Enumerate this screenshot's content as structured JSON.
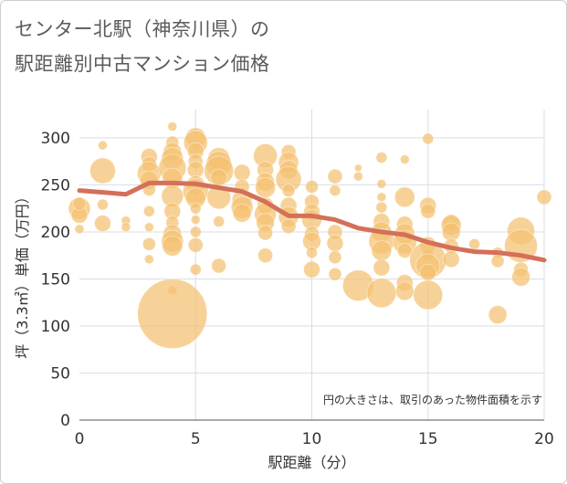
{
  "chart_data": {
    "type": "scatter",
    "title_line1": "センター北駅（神奈川県）の",
    "title_line2": "駅距離別中古マンション価格",
    "xlabel": "駅距離（分）",
    "ylabel": "坪（3.3㎡）単価（万円）",
    "annotation": "円の大きさは、取引のあった物件面積を示す",
    "xlim": [
      0,
      20
    ],
    "ylim": [
      0,
      330
    ],
    "xticks": [
      "0",
      "5",
      "10",
      "15",
      "20"
    ],
    "yticks": [
      "0",
      "50",
      "100",
      "150",
      "200",
      "250",
      "300"
    ],
    "xtick_values": [
      0,
      5,
      10,
      15,
      20
    ],
    "ytick_values": [
      0,
      50,
      100,
      150,
      200,
      250,
      300
    ],
    "colors": {
      "bubble": "#f4c170",
      "line": "#d4705a",
      "grid": "#d8dde6"
    },
    "trend_line": {
      "x": [
        0,
        1,
        2,
        3,
        4,
        5,
        6,
        7,
        8,
        9,
        10,
        11,
        12,
        13,
        14,
        15,
        16,
        17,
        18,
        19,
        20
      ],
      "y": [
        244,
        242,
        240,
        252,
        252,
        251,
        247,
        243,
        232,
        217,
        217,
        213,
        204,
        200,
        197,
        189,
        183,
        179,
        178,
        175,
        170
      ]
    },
    "bubbles": [
      {
        "x": 0,
        "y": 225,
        "s": 12
      },
      {
        "x": 0,
        "y": 218,
        "s": 9
      },
      {
        "x": 0,
        "y": 230,
        "s": 7
      },
      {
        "x": 0,
        "y": 203,
        "s": 5
      },
      {
        "x": 1,
        "y": 265,
        "s": 14
      },
      {
        "x": 1,
        "y": 292,
        "s": 5
      },
      {
        "x": 1,
        "y": 229,
        "s": 6
      },
      {
        "x": 1,
        "y": 209,
        "s": 9
      },
      {
        "x": 2,
        "y": 212,
        "s": 5
      },
      {
        "x": 2,
        "y": 205,
        "s": 5
      },
      {
        "x": 3,
        "y": 280,
        "s": 9
      },
      {
        "x": 3,
        "y": 272,
        "s": 8
      },
      {
        "x": 3,
        "y": 262,
        "s": 13
      },
      {
        "x": 3,
        "y": 255,
        "s": 10
      },
      {
        "x": 3,
        "y": 245,
        "s": 7
      },
      {
        "x": 3,
        "y": 222,
        "s": 6
      },
      {
        "x": 3,
        "y": 205,
        "s": 5
      },
      {
        "x": 3,
        "y": 187,
        "s": 7
      },
      {
        "x": 3,
        "y": 171,
        "s": 5
      },
      {
        "x": 4,
        "y": 312,
        "s": 5
      },
      {
        "x": 4,
        "y": 295,
        "s": 7
      },
      {
        "x": 4,
        "y": 285,
        "s": 10
      },
      {
        "x": 4,
        "y": 278,
        "s": 12
      },
      {
        "x": 4,
        "y": 268,
        "s": 15
      },
      {
        "x": 4,
        "y": 257,
        "s": 11
      },
      {
        "x": 4,
        "y": 238,
        "s": 12
      },
      {
        "x": 4,
        "y": 222,
        "s": 9
      },
      {
        "x": 4,
        "y": 210,
        "s": 7
      },
      {
        "x": 4,
        "y": 198,
        "s": 10
      },
      {
        "x": 4,
        "y": 190,
        "s": 12
      },
      {
        "x": 4,
        "y": 185,
        "s": 11
      },
      {
        "x": 4,
        "y": 138,
        "s": 5
      },
      {
        "x": 4,
        "y": 113,
        "s": 38
      },
      {
        "x": 5,
        "y": 300,
        "s": 11
      },
      {
        "x": 5,
        "y": 295,
        "s": 13
      },
      {
        "x": 5,
        "y": 286,
        "s": 9
      },
      {
        "x": 5,
        "y": 275,
        "s": 8
      },
      {
        "x": 5,
        "y": 266,
        "s": 9
      },
      {
        "x": 5,
        "y": 250,
        "s": 10
      },
      {
        "x": 5,
        "y": 243,
        "s": 14
      },
      {
        "x": 5,
        "y": 236,
        "s": 11
      },
      {
        "x": 5,
        "y": 225,
        "s": 6
      },
      {
        "x": 5,
        "y": 213,
        "s": 5
      },
      {
        "x": 5,
        "y": 200,
        "s": 6
      },
      {
        "x": 5,
        "y": 186,
        "s": 8
      },
      {
        "x": 5,
        "y": 160,
        "s": 6
      },
      {
        "x": 6,
        "y": 278,
        "s": 12
      },
      {
        "x": 6,
        "y": 272,
        "s": 14
      },
      {
        "x": 6,
        "y": 265,
        "s": 16
      },
      {
        "x": 6,
        "y": 258,
        "s": 9
      },
      {
        "x": 6,
        "y": 237,
        "s": 13
      },
      {
        "x": 6,
        "y": 211,
        "s": 6
      },
      {
        "x": 6,
        "y": 164,
        "s": 8
      },
      {
        "x": 7,
        "y": 263,
        "s": 9
      },
      {
        "x": 7,
        "y": 248,
        "s": 8
      },
      {
        "x": 7,
        "y": 234,
        "s": 11
      },
      {
        "x": 7,
        "y": 226,
        "s": 12
      },
      {
        "x": 7,
        "y": 220,
        "s": 10
      },
      {
        "x": 8,
        "y": 281,
        "s": 13
      },
      {
        "x": 8,
        "y": 266,
        "s": 9
      },
      {
        "x": 8,
        "y": 253,
        "s": 10
      },
      {
        "x": 8,
        "y": 247,
        "s": 11
      },
      {
        "x": 8,
        "y": 228,
        "s": 9
      },
      {
        "x": 8,
        "y": 219,
        "s": 12
      },
      {
        "x": 8,
        "y": 210,
        "s": 10
      },
      {
        "x": 8,
        "y": 199,
        "s": 8
      },
      {
        "x": 8,
        "y": 175,
        "s": 8
      },
      {
        "x": 9,
        "y": 285,
        "s": 8
      },
      {
        "x": 9,
        "y": 274,
        "s": 11
      },
      {
        "x": 9,
        "y": 266,
        "s": 10
      },
      {
        "x": 9,
        "y": 256,
        "s": 14
      },
      {
        "x": 9,
        "y": 244,
        "s": 7
      },
      {
        "x": 9,
        "y": 228,
        "s": 9
      },
      {
        "x": 9,
        "y": 216,
        "s": 11
      },
      {
        "x": 9,
        "y": 206,
        "s": 8
      },
      {
        "x": 10,
        "y": 248,
        "s": 7
      },
      {
        "x": 10,
        "y": 232,
        "s": 8
      },
      {
        "x": 10,
        "y": 221,
        "s": 9
      },
      {
        "x": 10,
        "y": 213,
        "s": 11
      },
      {
        "x": 10,
        "y": 198,
        "s": 8
      },
      {
        "x": 10,
        "y": 190,
        "s": 10
      },
      {
        "x": 10,
        "y": 178,
        "s": 6
      },
      {
        "x": 10,
        "y": 160,
        "s": 9
      },
      {
        "x": 11,
        "y": 259,
        "s": 8
      },
      {
        "x": 11,
        "y": 244,
        "s": 6
      },
      {
        "x": 11,
        "y": 200,
        "s": 8
      },
      {
        "x": 11,
        "y": 188,
        "s": 9
      },
      {
        "x": 11,
        "y": 173,
        "s": 7
      },
      {
        "x": 11,
        "y": 155,
        "s": 7
      },
      {
        "x": 12,
        "y": 268,
        "s": 4
      },
      {
        "x": 12,
        "y": 259,
        "s": 5
      },
      {
        "x": 12,
        "y": 143,
        "s": 17
      },
      {
        "x": 13,
        "y": 279,
        "s": 6
      },
      {
        "x": 13,
        "y": 251,
        "s": 5
      },
      {
        "x": 13,
        "y": 237,
        "s": 5
      },
      {
        "x": 13,
        "y": 226,
        "s": 6
      },
      {
        "x": 13,
        "y": 211,
        "s": 9
      },
      {
        "x": 13,
        "y": 200,
        "s": 11
      },
      {
        "x": 13,
        "y": 190,
        "s": 14
      },
      {
        "x": 13,
        "y": 180,
        "s": 11
      },
      {
        "x": 13,
        "y": 162,
        "s": 9
      },
      {
        "x": 13,
        "y": 135,
        "s": 16
      },
      {
        "x": 14,
        "y": 277,
        "s": 5
      },
      {
        "x": 14,
        "y": 237,
        "s": 11
      },
      {
        "x": 14,
        "y": 208,
        "s": 9
      },
      {
        "x": 14,
        "y": 198,
        "s": 11
      },
      {
        "x": 14,
        "y": 189,
        "s": 13
      },
      {
        "x": 14,
        "y": 180,
        "s": 8
      },
      {
        "x": 14,
        "y": 146,
        "s": 9
      },
      {
        "x": 14,
        "y": 137,
        "s": 10
      },
      {
        "x": 15,
        "y": 299,
        "s": 6
      },
      {
        "x": 15,
        "y": 228,
        "s": 9
      },
      {
        "x": 15,
        "y": 222,
        "s": 8
      },
      {
        "x": 15,
        "y": 186,
        "s": 9
      },
      {
        "x": 15,
        "y": 176,
        "s": 6
      },
      {
        "x": 15,
        "y": 170,
        "s": 20
      },
      {
        "x": 15,
        "y": 164,
        "s": 13
      },
      {
        "x": 15,
        "y": 157,
        "s": 9
      },
      {
        "x": 15,
        "y": 133,
        "s": 16
      },
      {
        "x": 16,
        "y": 210,
        "s": 9
      },
      {
        "x": 16,
        "y": 207,
        "s": 11
      },
      {
        "x": 16,
        "y": 200,
        "s": 10
      },
      {
        "x": 16,
        "y": 185,
        "s": 8
      },
      {
        "x": 16,
        "y": 171,
        "s": 9
      },
      {
        "x": 17,
        "y": 187,
        "s": 6
      },
      {
        "x": 18,
        "y": 178,
        "s": 6
      },
      {
        "x": 18,
        "y": 169,
        "s": 7
      },
      {
        "x": 18,
        "y": 112,
        "s": 10
      },
      {
        "x": 19,
        "y": 201,
        "s": 15
      },
      {
        "x": 19,
        "y": 185,
        "s": 18
      },
      {
        "x": 19,
        "y": 160,
        "s": 8
      },
      {
        "x": 19,
        "y": 152,
        "s": 10
      },
      {
        "x": 20,
        "y": 237,
        "s": 8
      }
    ]
  }
}
